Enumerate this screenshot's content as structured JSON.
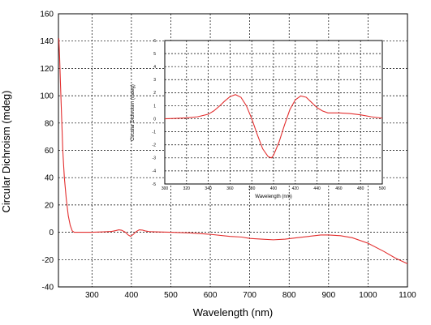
{
  "chart_data": [
    {
      "type": "line",
      "role": "main",
      "xlabel": "Wavelength (nm)",
      "ylabel": "Circular Dichroism (mdeg)",
      "xlim": [
        215,
        1100
      ],
      "ylim": [
        -40,
        160
      ],
      "x_ticks": [
        300,
        400,
        500,
        600,
        700,
        800,
        900,
        1000,
        1100
      ],
      "y_ticks": [
        -40,
        -20,
        0,
        20,
        40,
        60,
        80,
        100,
        120,
        140,
        160
      ],
      "grid": true,
      "line_color": "#e32f2f",
      "series": [
        {
          "x": [
            216,
            218,
            220,
            223,
            226,
            230,
            235,
            240,
            245,
            250,
            255,
            260,
            280,
            300,
            330,
            350,
            360,
            368,
            375,
            385,
            392,
            398,
            405,
            412,
            420,
            428,
            435,
            445,
            460,
            500,
            550,
            600,
            650,
            680,
            700,
            730,
            760,
            790,
            820,
            850,
            880,
            900,
            930,
            960,
            1000,
            1040,
            1070,
            1100
          ],
          "y": [
            142,
            128,
            110,
            85,
            60,
            40,
            24,
            12,
            5,
            1,
            0,
            0,
            0,
            0,
            0.3,
            0.6,
            1.2,
            1.8,
            1.5,
            0,
            -2,
            -3,
            -1.5,
            0.5,
            1.8,
            1.6,
            1,
            0.5,
            0.3,
            0,
            -0.5,
            -1.5,
            -3,
            -3.5,
            -4.5,
            -5,
            -5.5,
            -5,
            -4,
            -3,
            -2,
            -2,
            -2.5,
            -4,
            -8,
            -14,
            -19,
            -23
          ]
        }
      ]
    },
    {
      "type": "line",
      "role": "inset",
      "xlabel": "Wavelength (nm)",
      "ylabel": "Circular Dichroism (mdeg)",
      "xlim": [
        300,
        500
      ],
      "ylim": [
        -5,
        6
      ],
      "x_ticks": [
        300,
        320,
        340,
        360,
        380,
        400,
        420,
        440,
        460,
        480,
        500
      ],
      "y_ticks": [
        -5,
        -4,
        -3,
        -2,
        -1,
        0,
        1,
        2,
        3,
        4,
        5,
        6
      ],
      "grid": true,
      "line_color": "#e32f2f",
      "series": [
        {
          "x": [
            300,
            310,
            320,
            330,
            340,
            345,
            350,
            355,
            360,
            365,
            370,
            375,
            380,
            385,
            390,
            395,
            398,
            400,
            405,
            410,
            415,
            420,
            425,
            430,
            435,
            440,
            445,
            450,
            460,
            470,
            480,
            490,
            500
          ],
          "y": [
            0,
            0.03,
            0.07,
            0.15,
            0.35,
            0.6,
            0.95,
            1.35,
            1.7,
            1.85,
            1.65,
            1.0,
            0.0,
            -1.2,
            -2.3,
            -2.9,
            -3.0,
            -2.8,
            -1.8,
            -0.5,
            0.7,
            1.45,
            1.75,
            1.65,
            1.25,
            0.85,
            0.6,
            0.45,
            0.45,
            0.4,
            0.3,
            0.15,
            0.05
          ]
        }
      ]
    }
  ]
}
